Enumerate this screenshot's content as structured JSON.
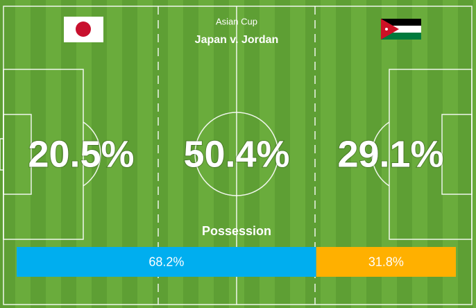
{
  "header": {
    "competition": "Asian Cup",
    "match": "Japan v. Jordan"
  },
  "zones": [
    "20.5%",
    "50.4%",
    "29.1%"
  ],
  "possession": {
    "title": "Possession",
    "values": [
      68.2,
      31.8
    ],
    "value_labels": [
      "68.2%",
      "31.8%"
    ],
    "colors": [
      "#00aeef",
      "#ffb000"
    ]
  }
}
